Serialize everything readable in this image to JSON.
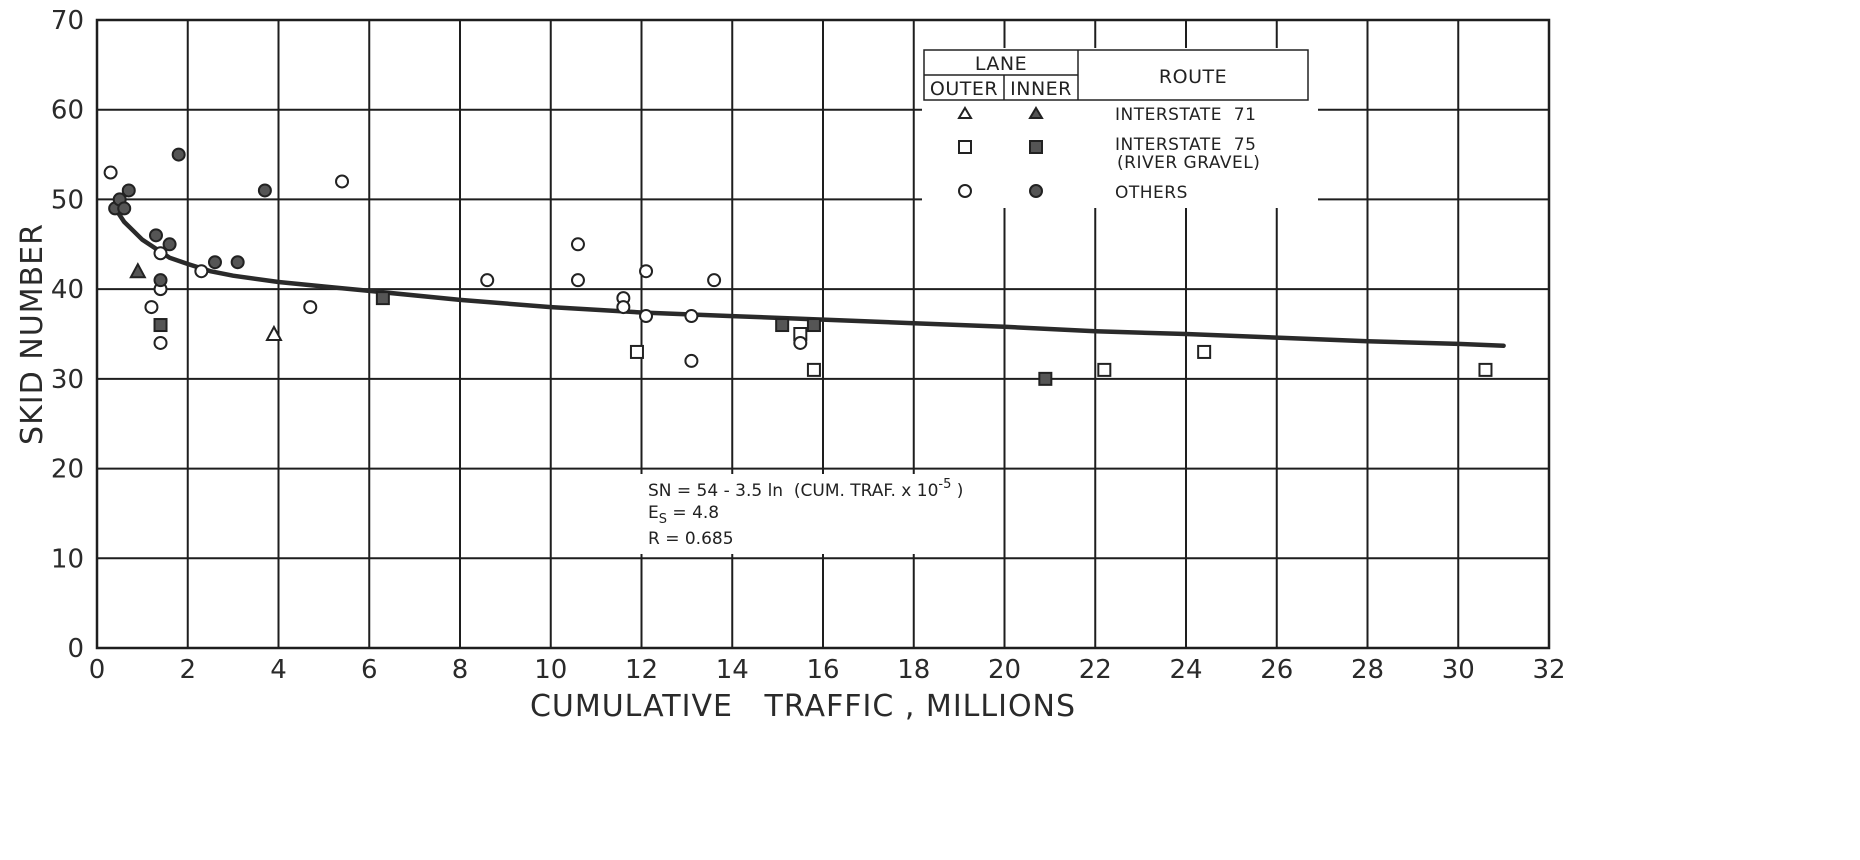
{
  "chart_data": {
    "type": "scatter",
    "xlabel": "CUMULATIVE   TRAFFIC , MILLIONS",
    "ylabel": "SKID NUMBER",
    "xlim": [
      0,
      32
    ],
    "ylim": [
      0,
      70
    ],
    "xticks": [
      "0",
      "2",
      "4",
      "6",
      "8",
      "10",
      "12",
      "14",
      "16",
      "18",
      "20",
      "22",
      "24",
      "26",
      "28",
      "30",
      "32"
    ],
    "yticks": [
      "0",
      "10",
      "20",
      "30",
      "40",
      "50",
      "60",
      "70"
    ],
    "grid": true,
    "legend": {
      "position": "top-right",
      "lane_header": "LANE",
      "outer_header": "OUTER",
      "inner_header": "INNER",
      "route_header": "ROUTE",
      "rows": [
        {
          "route": "INTERSTATE  71",
          "outer_marker": "open-triangle",
          "inner_marker": "filled-triangle"
        },
        {
          "route": "INTERSTATE  75",
          "route_line2": "(RIVER GRAVEL)",
          "outer_marker": "open-square",
          "inner_marker": "filled-square"
        },
        {
          "route": "OTHERS",
          "outer_marker": "open-circle",
          "inner_marker": "filled-circle"
        }
      ]
    },
    "series": [
      {
        "marker": "open-triangle",
        "points": [
          [
            3.9,
            35
          ]
        ]
      },
      {
        "marker": "filled-triangle",
        "points": [
          [
            0.9,
            42
          ]
        ]
      },
      {
        "marker": "open-square",
        "points": [
          [
            11.9,
            33
          ],
          [
            15.5,
            35
          ],
          [
            15.8,
            31
          ],
          [
            22.2,
            31
          ],
          [
            24.4,
            33
          ],
          [
            30.6,
            31
          ]
        ]
      },
      {
        "marker": "filled-square",
        "points": [
          [
            1.4,
            36
          ],
          [
            6.3,
            39
          ],
          [
            15.1,
            36
          ],
          [
            15.8,
            36
          ],
          [
            20.9,
            30
          ]
        ]
      },
      {
        "marker": "open-circle",
        "points": [
          [
            0.3,
            53
          ],
          [
            1.2,
            38
          ],
          [
            1.4,
            44
          ],
          [
            1.4,
            40
          ],
          [
            1.4,
            34
          ],
          [
            2.3,
            42
          ],
          [
            4.7,
            38
          ],
          [
            5.4,
            52
          ],
          [
            8.6,
            41
          ],
          [
            10.6,
            45
          ],
          [
            10.6,
            41
          ],
          [
            11.6,
            39
          ],
          [
            11.6,
            38
          ],
          [
            12.1,
            42
          ],
          [
            12.1,
            37
          ],
          [
            13.1,
            37
          ],
          [
            13.1,
            32
          ],
          [
            13.6,
            41
          ],
          [
            15.5,
            34
          ]
        ]
      },
      {
        "marker": "filled-circle",
        "points": [
          [
            0.4,
            49
          ],
          [
            0.5,
            50
          ],
          [
            0.6,
            49
          ],
          [
            0.7,
            51
          ],
          [
            1.3,
            46
          ],
          [
            1.4,
            41
          ],
          [
            1.6,
            45
          ],
          [
            1.8,
            55
          ],
          [
            2.6,
            43
          ],
          [
            3.1,
            43
          ],
          [
            3.7,
            51
          ]
        ]
      }
    ],
    "fit_curve": {
      "x": [
        0.4,
        0.6,
        0.8,
        1.0,
        1.3,
        1.6,
        2.0,
        2.5,
        3.0,
        4.0,
        5.0,
        6.0,
        8.0,
        10.0,
        12.0,
        14.0,
        16.0,
        18.0,
        20.0,
        22.0,
        24.0,
        26.0,
        28.0,
        30.0,
        31.0
      ],
      "y": [
        49.0,
        47.5,
        46.5,
        45.5,
        44.5,
        43.5,
        42.8,
        42.0,
        41.5,
        40.8,
        40.3,
        39.8,
        38.8,
        38.0,
        37.4,
        37.0,
        36.6,
        36.2,
        35.8,
        35.3,
        35.0,
        34.6,
        34.2,
        33.9,
        33.7
      ]
    },
    "annotation": {
      "line1": "SN = 54 - 3.5 ln  (CUM. TRAF. x 10",
      "line1_sup": "-5",
      "line1_end": " )",
      "line2_main": "E",
      "line2_sub": "S",
      "line2_rest": " = 4.8",
      "line3": "R = 0.685"
    }
  }
}
